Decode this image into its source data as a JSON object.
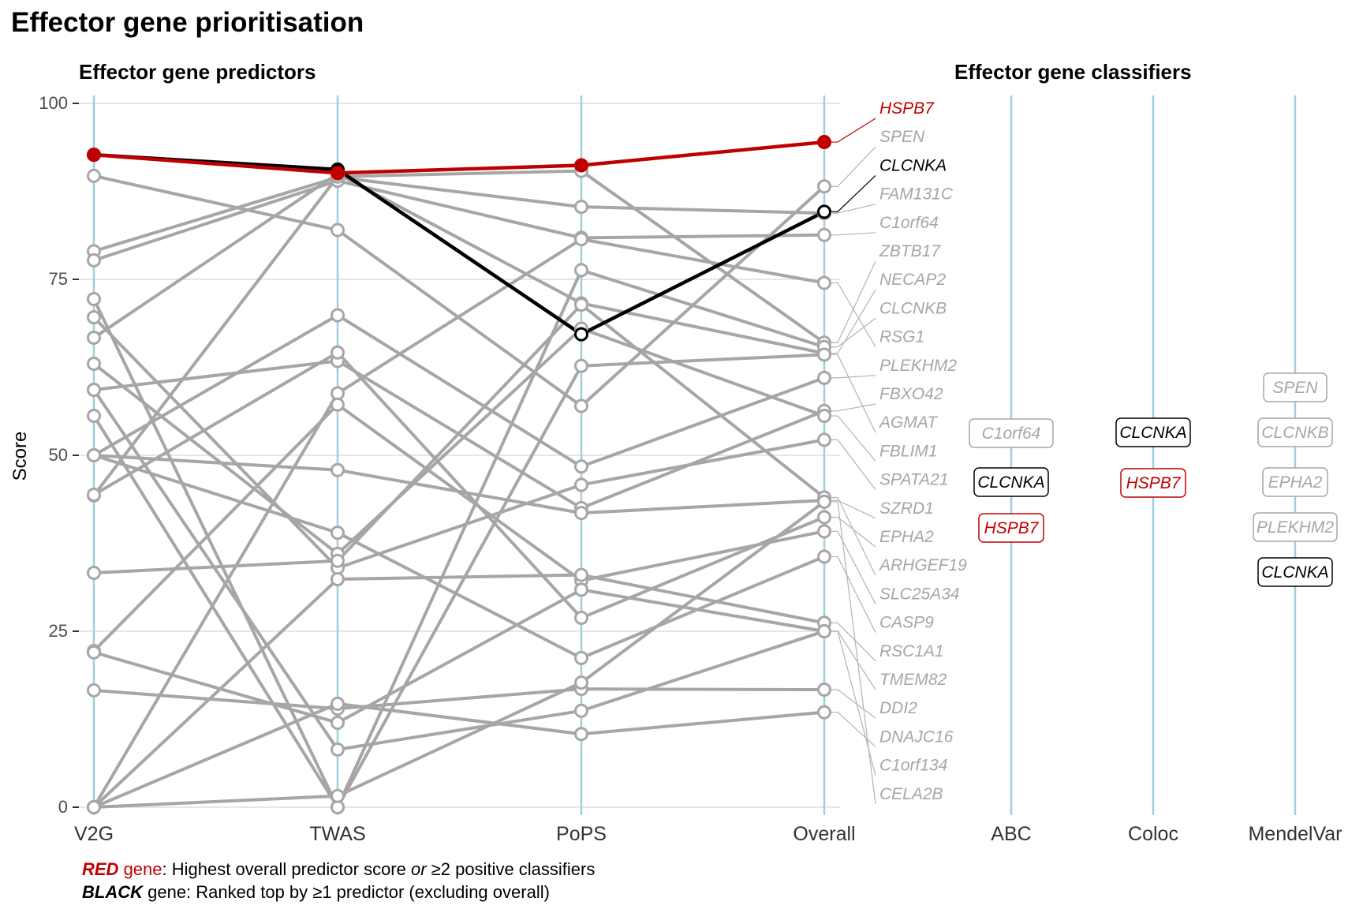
{
  "title": "Effector gene prioritisation",
  "colors": {
    "red": "#c00000",
    "black": "#000000",
    "grey": "#a6a6a6",
    "axis_line": "#9fcfdc",
    "grid": "#e6e6e6"
  },
  "chart_data": [
    {
      "type": "line",
      "title": "Effector gene predictors",
      "ylabel": "Score",
      "ylim": [
        0,
        100
      ],
      "yticks": [
        0,
        25,
        50,
        75,
        100
      ],
      "categories": [
        "V2G",
        "TWAS",
        "PoPS",
        "Overall"
      ],
      "grid": true,
      "series": [
        {
          "name": "HSPB7",
          "highlight": "red",
          "values": [
            92.7,
            90.1,
            91.2,
            94.5
          ]
        },
        {
          "name": "CLCNKA",
          "highlight": "black",
          "values": [
            92.7,
            90.6,
            67.2,
            84.6
          ]
        },
        {
          "name": "SPEN",
          "values": [
            89.7,
            82.0,
            57.0,
            88.2
          ]
        },
        {
          "name": "FAM131C",
          "values": [
            79.0,
            89.5,
            85.3,
            84.4
          ]
        },
        {
          "name": "C1orf64",
          "values": [
            77.7,
            89.0,
            80.9,
            81.3
          ]
        },
        {
          "name": "ZBTB17",
          "values": [
            44.3,
            89.6,
            90.4,
            66.0
          ]
        },
        {
          "name": "NECAP2",
          "values": [
            66.7,
            90.0,
            71.6,
            64.5
          ]
        },
        {
          "name": "CLCNKB",
          "values": [
            72.2,
            0.0,
            76.3,
            65.4
          ]
        },
        {
          "name": "RSG1",
          "values": [
            0.0,
            58.8,
            80.7,
            74.5
          ]
        },
        {
          "name": "PLEKHM2",
          "values": [
            50.0,
            69.9,
            48.4,
            61.0
          ]
        },
        {
          "name": "FBXO42",
          "values": [
            59.3,
            63.4,
            42.5,
            56.3
          ]
        },
        {
          "name": "AGMAT",
          "values": [
            55.6,
            0.0,
            62.7,
            64.3
          ]
        },
        {
          "name": "FBLIM1",
          "values": [
            63.0,
            36.0,
            68.0,
            55.6
          ]
        },
        {
          "name": "SPATA21",
          "values": [
            69.6,
            34.0,
            45.8,
            52.2
          ]
        },
        {
          "name": "SZRD1",
          "values": [
            50.0,
            47.9,
            41.8,
            43.6
          ]
        },
        {
          "name": "EPHA2",
          "values": [
            44.4,
            64.6,
            26.9,
            41.2
          ]
        },
        {
          "name": "ARHGEF19",
          "values": [
            33.3,
            35.0,
            71.4,
            44.0
          ]
        },
        {
          "name": "SLC25A34",
          "values": [
            22.2,
            57.2,
            32.2,
            39.2
          ]
        },
        {
          "name": "CASP9",
          "values": [
            50.0,
            39.0,
            21.2,
            35.6
          ]
        },
        {
          "name": "RSC1A1",
          "values": [
            0.0,
            32.4,
            33.0,
            26.2
          ]
        },
        {
          "name": "TMEM82",
          "values": [
            22.0,
            12.0,
            30.9,
            25.0
          ]
        },
        {
          "name": "DDI2",
          "values": [
            16.6,
            14.0,
            16.8,
            16.7
          ]
        },
        {
          "name": "DNAJC16",
          "values": [
            0.0,
            14.7,
            10.4,
            13.5
          ]
        },
        {
          "name": "C1orf134",
          "values": [
            59.3,
            8.2,
            13.7,
            25.0
          ]
        },
        {
          "name": "CELA2B",
          "values": [
            0.0,
            1.6,
            17.7,
            43.4
          ]
        }
      ],
      "labels": [
        {
          "gene": "HSPB7",
          "color": "red"
        },
        {
          "gene": "SPEN",
          "color": "grey"
        },
        {
          "gene": "CLCNKA",
          "color": "black"
        },
        {
          "gene": "FAM131C",
          "color": "grey"
        },
        {
          "gene": "C1orf64",
          "color": "grey"
        },
        {
          "gene": "ZBTB17",
          "color": "grey"
        },
        {
          "gene": "NECAP2",
          "color": "grey"
        },
        {
          "gene": "CLCNKB",
          "color": "grey"
        },
        {
          "gene": "RSG1",
          "color": "grey"
        },
        {
          "gene": "PLEKHM2",
          "color": "grey"
        },
        {
          "gene": "FBXO42",
          "color": "grey"
        },
        {
          "gene": "AGMAT",
          "color": "grey"
        },
        {
          "gene": "FBLIM1",
          "color": "grey"
        },
        {
          "gene": "SPATA21",
          "color": "grey"
        },
        {
          "gene": "SZRD1",
          "color": "grey"
        },
        {
          "gene": "EPHA2",
          "color": "grey"
        },
        {
          "gene": "ARHGEF19",
          "color": "grey"
        },
        {
          "gene": "SLC25A34",
          "color": "grey"
        },
        {
          "gene": "CASP9",
          "color": "grey"
        },
        {
          "gene": "RSC1A1",
          "color": "grey"
        },
        {
          "gene": "TMEM82",
          "color": "grey"
        },
        {
          "gene": "DDI2",
          "color": "grey"
        },
        {
          "gene": "DNAJC16",
          "color": "grey"
        },
        {
          "gene": "C1orf134",
          "color": "grey"
        },
        {
          "gene": "CELA2B",
          "color": "grey"
        }
      ]
    },
    {
      "type": "table",
      "title": "Effector gene classifiers",
      "categories": [
        "ABC",
        "Coloc",
        "MendelVar"
      ],
      "columns": [
        {
          "name": "ABC",
          "genes": [
            {
              "gene": "C1orf64",
              "color": "grey"
            },
            {
              "gene": "CLCNKA",
              "color": "black"
            },
            {
              "gene": "HSPB7",
              "color": "red"
            }
          ]
        },
        {
          "name": "Coloc",
          "genes": [
            {
              "gene": "CLCNKA",
              "color": "black"
            },
            {
              "gene": "HSPB7",
              "color": "red"
            }
          ]
        },
        {
          "name": "MendelVar",
          "genes": [
            {
              "gene": "SPEN",
              "color": "grey"
            },
            {
              "gene": "CLCNKB",
              "color": "grey"
            },
            {
              "gene": "EPHA2",
              "color": "grey"
            },
            {
              "gene": "PLEKHM2",
              "color": "grey"
            },
            {
              "gene": "CLCNKA",
              "color": "black"
            }
          ]
        }
      ]
    }
  ],
  "caption": {
    "line1": {
      "bold": "RED",
      "rest_colored": " gene",
      "rest": ": Highest overall predictor score ",
      "italic": "or",
      "tail": " ≥2 positive classifiers"
    },
    "line2": {
      "bold": "BLACK",
      "rest": " gene: Ranked top by ≥1 predictor (excluding overall)"
    }
  }
}
